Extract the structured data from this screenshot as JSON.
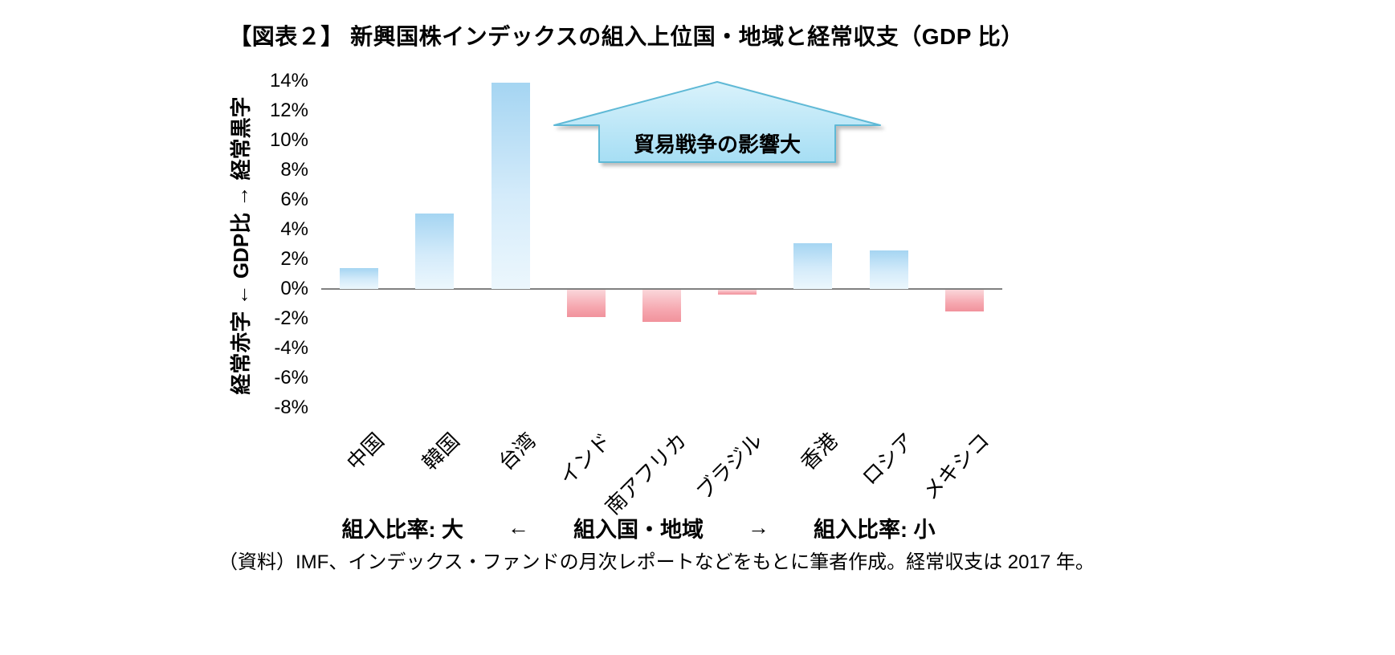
{
  "chart_data": {
    "type": "bar",
    "title": "【図表２】 新興国株インデックスの組入上位国・地域と経常収支（GDP 比）",
    "categories": [
      "中国",
      "韓国",
      "台湾",
      "インド",
      "南アフリカ",
      "ブラジル",
      "香港",
      "ロシア",
      "メキシコ"
    ],
    "values": [
      1.4,
      5.1,
      13.9,
      -1.9,
      -2.2,
      -0.4,
      3.1,
      2.6,
      -1.5
    ],
    "unit": "%",
    "ylim": [
      -8,
      14
    ],
    "yticks": [
      "14%",
      "12%",
      "10%",
      "8%",
      "6%",
      "4%",
      "2%",
      "0%",
      "-2%",
      "-4%",
      "-6%",
      "-8%"
    ],
    "yaxis_title": "経常赤字 ← GDP比 → 経常黒字",
    "annotation": "貿易戦争の影響大",
    "xaxis_note": {
      "left": "組入比率: 大",
      "arrow_left": "←",
      "center": "組入国・地域",
      "arrow_right": "→",
      "right": "組入比率: 小"
    },
    "source": "（資料）IMF、インデックス・ファンドの月次レポートなどをもとに筆者作成。経常収支は 2017 年。",
    "grid": false,
    "legend": false,
    "colors": {
      "positive_bar_top": "#a5d5f2",
      "positive_bar_bottom": "#ecf7fd",
      "negative_bar_top": "#fad6da",
      "negative_bar_bottom": "#f1929c",
      "zero_line": "#808080",
      "callout_fill_top": "#d9f2fb",
      "callout_fill_bottom": "#a6def4",
      "callout_border": "#5fb9d6"
    }
  }
}
